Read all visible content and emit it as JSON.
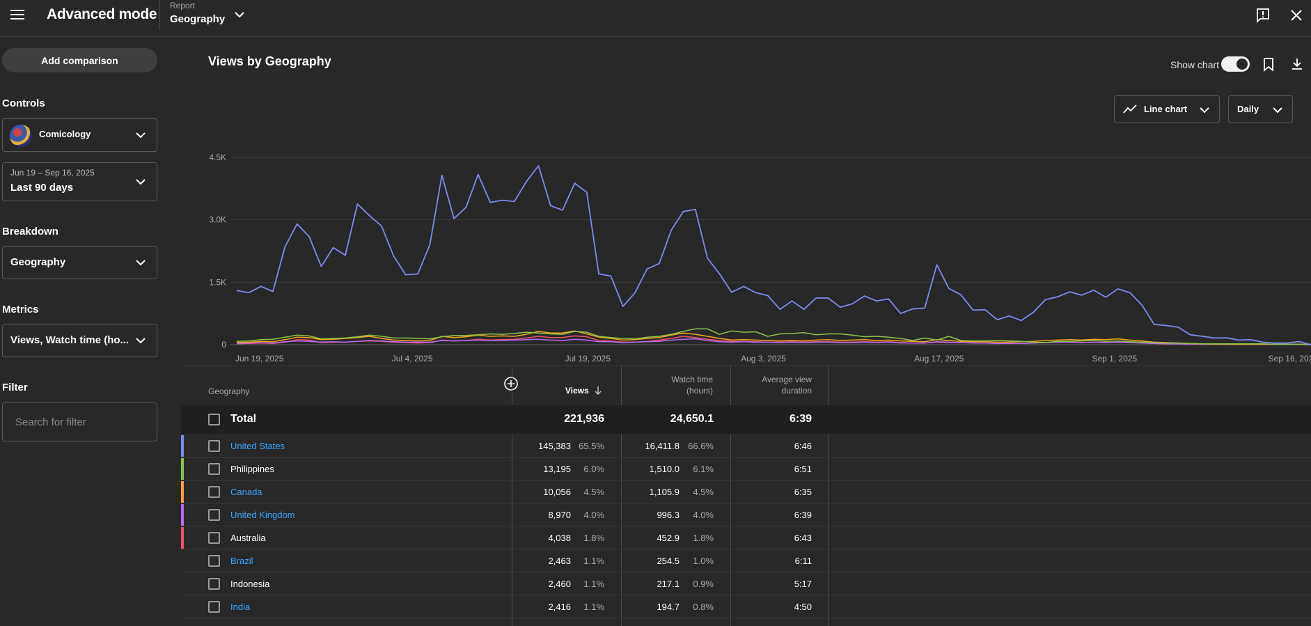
{
  "header": {
    "app_title": "Advanced mode",
    "report_label": "Report",
    "report_value": "Geography"
  },
  "sidebar": {
    "add_comparison": "Add comparison",
    "controls_label": "Controls",
    "channel_name": "Comicology",
    "date_range": "Jun 19 – Sep 16, 2025",
    "date_preset": "Last 90 days",
    "breakdown_label": "Breakdown",
    "breakdown_value": "Geography",
    "metrics_label": "Metrics",
    "metrics_value": "Views, Watch time (ho...",
    "filter_label": "Filter",
    "filter_placeholder": "Search for filter"
  },
  "chart_header": {
    "title": "Views by Geography",
    "show_chart_label": "Show chart",
    "show_chart_on": true,
    "chart_type": "Line chart",
    "interval": "Daily"
  },
  "chart_data": {
    "type": "line",
    "y_ticks": [
      "4.5K",
      "3.0K",
      "1.5K",
      "0"
    ],
    "ylim": [
      0,
      4500
    ],
    "x_tick_labels": [
      "Jun 19, 2025",
      "Jul 4, 2025",
      "Jul 19, 2025",
      "Aug 3, 2025",
      "Aug 17, 2025",
      "Sep 1, 2025",
      "Sep 16, 2025"
    ],
    "x_range_days": 90,
    "series": [
      {
        "name": "United States",
        "color": "#7b8cf0",
        "values": [
          1300,
          1250,
          1400,
          1280,
          2350,
          2900,
          2600,
          1880,
          2330,
          2150,
          3380,
          3100,
          2850,
          2130,
          1680,
          1700,
          2400,
          4070,
          3030,
          3300,
          4090,
          3420,
          3470,
          3440,
          3920,
          4300,
          3340,
          3230,
          3880,
          3660,
          1700,
          1650,
          920,
          1250,
          1820,
          1950,
          2750,
          3200,
          3250,
          2080,
          1700,
          1260,
          1400,
          1250,
          1180,
          850,
          1050,
          850,
          1120,
          1120,
          900,
          980,
          1170,
          1050,
          1100,
          750,
          860,
          880,
          1920,
          1350,
          1200,
          830,
          840,
          600,
          690,
          580,
          780,
          1080,
          1150,
          1270,
          1190,
          1310,
          1140,
          1340,
          1250,
          950,
          490,
          460,
          420,
          240,
          200,
          160,
          165,
          110,
          120,
          60,
          40,
          40,
          75,
          0
        ]
      },
      {
        "name": "Philippines",
        "color": "#8bc34a",
        "values": [
          80,
          90,
          120,
          130,
          180,
          230,
          210,
          140,
          150,
          160,
          190,
          230,
          200,
          160,
          160,
          150,
          140,
          190,
          220,
          220,
          240,
          260,
          250,
          270,
          300,
          280,
          260,
          250,
          320,
          300,
          200,
          170,
          150,
          140,
          180,
          200,
          250,
          320,
          380,
          380,
          250,
          330,
          300,
          310,
          200,
          260,
          270,
          290,
          240,
          260,
          260,
          230,
          190,
          200,
          180,
          150,
          100,
          160,
          110,
          200,
          100,
          90,
          90,
          100,
          90,
          80,
          60,
          50,
          80,
          80,
          90,
          100,
          80,
          90,
          70,
          60,
          50,
          40,
          40,
          30,
          20,
          20,
          20,
          20,
          20,
          20,
          10,
          10,
          10,
          10
        ]
      },
      {
        "name": "Canada",
        "color": "#f5a623",
        "values": [
          50,
          60,
          80,
          70,
          120,
          180,
          170,
          120,
          130,
          150,
          170,
          200,
          150,
          110,
          100,
          90,
          100,
          200,
          170,
          190,
          230,
          200,
          210,
          200,
          250,
          320,
          280,
          280,
          330,
          260,
          180,
          150,
          110,
          120,
          150,
          170,
          230,
          280,
          250,
          200,
          150,
          110,
          120,
          110,
          100,
          90,
          100,
          90,
          110,
          120,
          100,
          110,
          120,
          100,
          110,
          90,
          80,
          70,
          120,
          100,
          80,
          70,
          70,
          60,
          60,
          70,
          80,
          100,
          110,
          120,
          110,
          130,
          120,
          140,
          110,
          90,
          60,
          50,
          40,
          30,
          20,
          15,
          15,
          10,
          10,
          10,
          10,
          10,
          10,
          5
        ]
      },
      {
        "name": "United Kingdom",
        "color": "#b56cf0",
        "values": [
          30,
          40,
          50,
          40,
          70,
          90,
          80,
          60,
          70,
          60,
          80,
          100,
          90,
          70,
          60,
          60,
          60,
          100,
          90,
          100,
          110,
          100,
          100,
          110,
          120,
          130,
          110,
          100,
          130,
          110,
          70,
          70,
          50,
          60,
          70,
          80,
          110,
          130,
          140,
          100,
          70,
          60,
          70,
          60,
          60,
          50,
          60,
          50,
          60,
          60,
          50,
          50,
          60,
          50,
          60,
          40,
          40,
          40,
          70,
          60,
          50,
          40,
          40,
          30,
          30,
          30,
          40,
          50,
          60,
          60,
          50,
          60,
          50,
          60,
          50,
          40,
          30,
          25,
          20,
          15,
          10,
          8,
          8,
          5,
          5,
          5,
          5,
          5,
          5,
          0
        ]
      },
      {
        "name": "Australia",
        "color": "#e8546b",
        "values": [
          20,
          30,
          40,
          30,
          60,
          120,
          110,
          50,
          60,
          60,
          80,
          90,
          80,
          60,
          50,
          40,
          50,
          110,
          90,
          100,
          130,
          110,
          120,
          130,
          160,
          200,
          170,
          170,
          210,
          190,
          100,
          90,
          60,
          60,
          80,
          110,
          150,
          200,
          170,
          130,
          100,
          80,
          80,
          70,
          60,
          60,
          70,
          60,
          70,
          70,
          60,
          60,
          70,
          60,
          70,
          50,
          40,
          40,
          60,
          50,
          50,
          40,
          40,
          30,
          30,
          30,
          40,
          50,
          60,
          60,
          50,
          60,
          50,
          60,
          50,
          40,
          30,
          20,
          20,
          10,
          10,
          10,
          10,
          5,
          5,
          5,
          5,
          5,
          5,
          0
        ]
      }
    ]
  },
  "table": {
    "headers": {
      "geography": "Geography",
      "views": "Views",
      "watch_time_1": "Watch time",
      "watch_time_2": "(hours)",
      "avg_duration_1": "Average view",
      "avg_duration_2": "duration"
    },
    "total": {
      "label": "Total",
      "views": "221,936",
      "watch_time": "24,650.1",
      "avg_duration": "6:39"
    },
    "rows": [
      {
        "country": "United States",
        "is_link": true,
        "color": "#7b8cf0",
        "views": "145,383",
        "views_pct": "65.5%",
        "watch": "16,411.8",
        "watch_pct": "66.6%",
        "avg": "6:46"
      },
      {
        "country": "Philippines",
        "is_link": false,
        "color": "#8bc34a",
        "views": "13,195",
        "views_pct": "6.0%",
        "watch": "1,510.0",
        "watch_pct": "6.1%",
        "avg": "6:51"
      },
      {
        "country": "Canada",
        "is_link": true,
        "color": "#f5a623",
        "views": "10,056",
        "views_pct": "4.5%",
        "watch": "1,105.9",
        "watch_pct": "4.5%",
        "avg": "6:35"
      },
      {
        "country": "United Kingdom",
        "is_link": true,
        "color": "#b56cf0",
        "views": "8,970",
        "views_pct": "4.0%",
        "watch": "996.3",
        "watch_pct": "4.0%",
        "avg": "6:39"
      },
      {
        "country": "Australia",
        "is_link": false,
        "color": "#e8546b",
        "views": "4,038",
        "views_pct": "1.8%",
        "watch": "452.9",
        "watch_pct": "1.8%",
        "avg": "6:43"
      },
      {
        "country": "Brazil",
        "is_link": true,
        "color": "",
        "views": "2,463",
        "views_pct": "1.1%",
        "watch": "254.5",
        "watch_pct": "1.0%",
        "avg": "6:11"
      },
      {
        "country": "Indonesia",
        "is_link": false,
        "color": "",
        "views": "2,460",
        "views_pct": "1.1%",
        "watch": "217.1",
        "watch_pct": "0.9%",
        "avg": "5:17"
      },
      {
        "country": "India",
        "is_link": true,
        "color": "",
        "views": "2,416",
        "views_pct": "1.1%",
        "watch": "194.7",
        "watch_pct": "0.8%",
        "avg": "4:50"
      }
    ]
  }
}
